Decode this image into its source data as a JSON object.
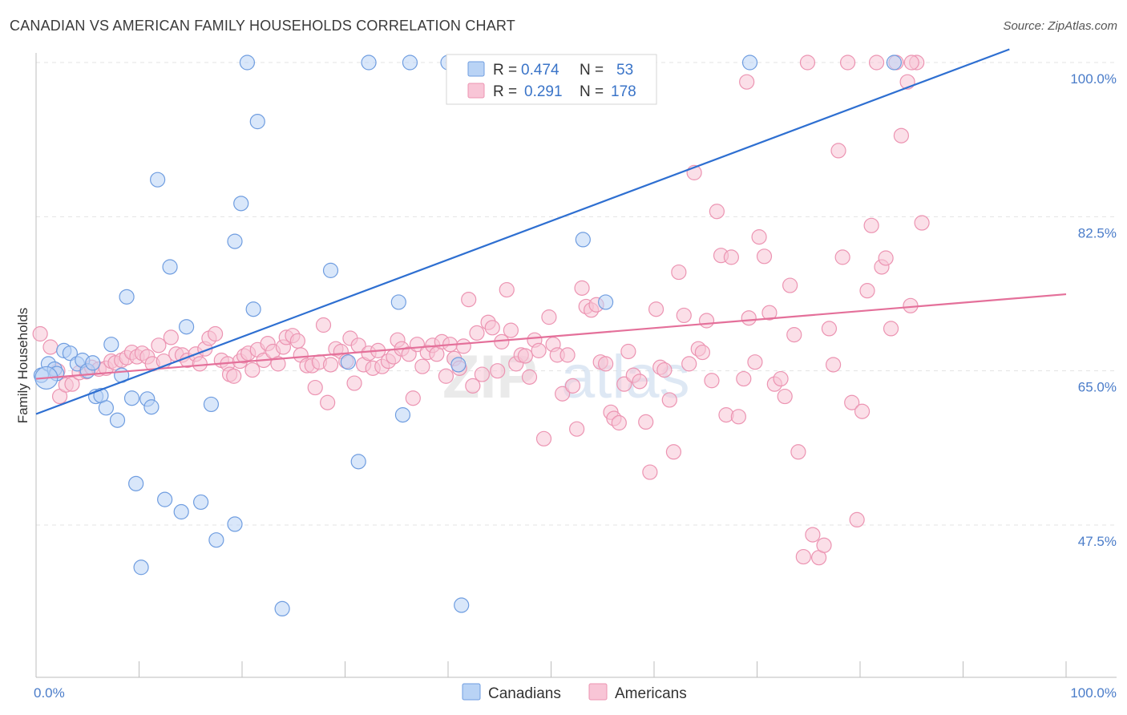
{
  "header": {
    "title": "CANADIAN VS AMERICAN FAMILY HOUSEHOLDS CORRELATION CHART",
    "source": "Source: ZipAtlas.com"
  },
  "watermark": {
    "zip": "ZIP",
    "atlas": "atlas"
  },
  "legend": {
    "rows": [
      {
        "r_label": "R =",
        "r_value": "0.474",
        "n_label": "N =",
        "n_value": "53"
      },
      {
        "r_label": "R =",
        "r_value": "0.291",
        "n_label": "N =",
        "n_value": "178"
      }
    ]
  },
  "bottom_legend": [
    "Canadians",
    "Americans"
  ],
  "colors": {
    "canadians_fill": "#b9d3f5",
    "canadians_stroke": "#6f9de0",
    "canadians_line": "#2e6fd1",
    "americans_fill": "#f8c5d6",
    "americans_stroke": "#ec94b2",
    "americans_line": "#e4709a",
    "grid": "#e3e3e3",
    "axis": "#bdbdbd",
    "tick_text": "#4a7cc9"
  },
  "chart_data": {
    "type": "scatter",
    "title": "CANADIAN VS AMERICAN FAMILY HOUSEHOLDS CORRELATION CHART",
    "xlabel": "",
    "ylabel": "Family Households",
    "x_tick_labels": [
      "0.0%",
      "100.0%"
    ],
    "y_tick_labels": [
      "100.0%",
      "82.5%",
      "65.0%",
      "47.5%"
    ],
    "y_ticks": [
      100,
      82.5,
      65,
      47.5
    ],
    "xlim": [
      0,
      100
    ],
    "ylim": [
      33.5,
      101.5
    ],
    "grid": true,
    "legend_position": "top-center",
    "series": [
      {
        "name": "Canadians",
        "r": 0.474,
        "n": 53,
        "trend": [
          [
            0,
            60.1
          ],
          [
            94.5,
            101.5
          ]
        ],
        "points": [
          [
            0.5,
            64.5
          ],
          [
            1.2,
            65.8
          ],
          [
            1.8,
            65.2
          ],
          [
            2.0,
            64.7
          ],
          [
            2.7,
            67.3
          ],
          [
            3.3,
            67.0
          ],
          [
            4.0,
            65.8
          ],
          [
            4.5,
            66.2
          ],
          [
            5.0,
            65.0
          ],
          [
            5.5,
            65.9
          ],
          [
            5.8,
            62.1
          ],
          [
            6.3,
            62.2
          ],
          [
            6.8,
            60.8
          ],
          [
            7.3,
            68.0
          ],
          [
            7.9,
            59.4
          ],
          [
            8.3,
            64.5
          ],
          [
            8.8,
            73.4
          ],
          [
            9.3,
            61.9
          ],
          [
            9.7,
            52.2
          ],
          [
            10.2,
            42.7
          ],
          [
            10.8,
            61.8
          ],
          [
            11.2,
            60.9
          ],
          [
            11.8,
            86.7
          ],
          [
            12.5,
            50.4
          ],
          [
            13.0,
            76.8
          ],
          [
            14.1,
            49.0
          ],
          [
            14.6,
            70.0
          ],
          [
            16.0,
            50.1
          ],
          [
            17.0,
            61.2
          ],
          [
            17.5,
            45.8
          ],
          [
            19.3,
            79.7
          ],
          [
            19.3,
            47.6
          ],
          [
            19.9,
            84.0
          ],
          [
            20.5,
            100.0
          ],
          [
            21.1,
            72.0
          ],
          [
            21.5,
            93.3
          ],
          [
            23.9,
            38.0
          ],
          [
            28.6,
            76.4
          ],
          [
            30.3,
            66.0
          ],
          [
            31.3,
            54.7
          ],
          [
            32.3,
            100.0
          ],
          [
            35.2,
            72.8
          ],
          [
            35.6,
            60.0
          ],
          [
            36.3,
            100.0
          ],
          [
            40.0,
            100.0
          ],
          [
            41.0,
            65.7
          ],
          [
            41.3,
            38.4
          ],
          [
            53.1,
            79.9
          ],
          [
            55.3,
            72.8
          ],
          [
            58.0,
            100.0
          ],
          [
            69.3,
            100.0
          ],
          [
            83.3,
            100.0
          ],
          [
            1.0,
            64.2
          ]
        ]
      },
      {
        "name": "Americans",
        "r": 0.291,
        "n": 178,
        "trend": [
          [
            0,
            64.1
          ],
          [
            100,
            73.7
          ]
        ],
        "points": [
          [
            0.4,
            69.2
          ],
          [
            1.4,
            67.7
          ],
          [
            2.1,
            65.0
          ],
          [
            2.3,
            62.1
          ],
          [
            2.9,
            63.4
          ],
          [
            3.5,
            63.5
          ],
          [
            4.2,
            64.8
          ],
          [
            4.9,
            64.9
          ],
          [
            5.4,
            65.4
          ],
          [
            6.1,
            65.2
          ],
          [
            6.8,
            65.3
          ],
          [
            7.3,
            66.1
          ],
          [
            7.7,
            65.9
          ],
          [
            8.3,
            66.2
          ],
          [
            8.8,
            66.5
          ],
          [
            9.3,
            67.1
          ],
          [
            9.8,
            66.6
          ],
          [
            10.3,
            67.0
          ],
          [
            10.8,
            66.6
          ],
          [
            11.3,
            65.8
          ],
          [
            11.9,
            67.9
          ],
          [
            12.4,
            66.1
          ],
          [
            13.1,
            68.8
          ],
          [
            13.6,
            66.9
          ],
          [
            14.2,
            66.8
          ],
          [
            14.7,
            66.2
          ],
          [
            15.5,
            66.9
          ],
          [
            15.9,
            65.8
          ],
          [
            16.4,
            67.5
          ],
          [
            16.8,
            68.7
          ],
          [
            17.4,
            69.2
          ],
          [
            18.0,
            66.2
          ],
          [
            18.6,
            65.8
          ],
          [
            18.8,
            64.6
          ],
          [
            19.2,
            64.4
          ],
          [
            19.8,
            66.1
          ],
          [
            20.2,
            66.7
          ],
          [
            20.6,
            67.0
          ],
          [
            21.0,
            65.1
          ],
          [
            21.5,
            67.4
          ],
          [
            22.1,
            66.2
          ],
          [
            22.5,
            68.1
          ],
          [
            23.0,
            67.2
          ],
          [
            23.5,
            65.8
          ],
          [
            24.0,
            67.7
          ],
          [
            24.3,
            68.8
          ],
          [
            24.9,
            69.0
          ],
          [
            25.4,
            68.4
          ],
          [
            25.7,
            66.8
          ],
          [
            26.3,
            65.6
          ],
          [
            26.8,
            65.6
          ],
          [
            27.1,
            63.1
          ],
          [
            27.5,
            66.0
          ],
          [
            27.9,
            70.2
          ],
          [
            28.3,
            61.4
          ],
          [
            28.6,
            65.7
          ],
          [
            29.1,
            67.5
          ],
          [
            29.6,
            67.2
          ],
          [
            30.1,
            66.1
          ],
          [
            30.5,
            68.7
          ],
          [
            30.9,
            63.6
          ],
          [
            31.3,
            67.9
          ],
          [
            31.8,
            65.7
          ],
          [
            32.3,
            67.0
          ],
          [
            32.7,
            65.3
          ],
          [
            33.2,
            67.3
          ],
          [
            33.6,
            65.5
          ],
          [
            34.2,
            66.1
          ],
          [
            34.7,
            66.6
          ],
          [
            35.1,
            68.5
          ],
          [
            35.5,
            67.5
          ],
          [
            36.2,
            66.9
          ],
          [
            36.6,
            61.9
          ],
          [
            37.0,
            68.0
          ],
          [
            37.5,
            65.5
          ],
          [
            38.0,
            67.1
          ],
          [
            38.5,
            67.9
          ],
          [
            38.9,
            66.9
          ],
          [
            39.4,
            68.3
          ],
          [
            39.8,
            64.4
          ],
          [
            40.2,
            68.0
          ],
          [
            40.6,
            66.4
          ],
          [
            41.1,
            65.3
          ],
          [
            41.5,
            67.8
          ],
          [
            42.0,
            73.1
          ],
          [
            42.4,
            63.3
          ],
          [
            42.8,
            69.3
          ],
          [
            43.3,
            64.6
          ],
          [
            43.9,
            70.5
          ],
          [
            44.3,
            69.9
          ],
          [
            44.8,
            65.0
          ],
          [
            45.2,
            68.3
          ],
          [
            45.7,
            74.2
          ],
          [
            46.1,
            69.6
          ],
          [
            46.6,
            65.8
          ],
          [
            47.1,
            66.8
          ],
          [
            47.5,
            66.7
          ],
          [
            47.9,
            64.3
          ],
          [
            48.4,
            68.5
          ],
          [
            48.8,
            67.3
          ],
          [
            49.3,
            57.3
          ],
          [
            49.8,
            71.1
          ],
          [
            50.2,
            68.0
          ],
          [
            50.6,
            66.8
          ],
          [
            51.1,
            62.4
          ],
          [
            51.6,
            66.8
          ],
          [
            52.1,
            63.3
          ],
          [
            52.5,
            58.4
          ],
          [
            53.0,
            74.4
          ],
          [
            53.4,
            72.3
          ],
          [
            53.9,
            71.9
          ],
          [
            54.4,
            72.5
          ],
          [
            54.8,
            66.0
          ],
          [
            55.3,
            65.8
          ],
          [
            55.8,
            60.3
          ],
          [
            56.1,
            59.6
          ],
          [
            56.6,
            59.1
          ],
          [
            57.1,
            63.5
          ],
          [
            57.5,
            67.2
          ],
          [
            58.0,
            64.5
          ],
          [
            58.6,
            63.8
          ],
          [
            59.2,
            59.2
          ],
          [
            59.6,
            53.5
          ],
          [
            60.2,
            72.0
          ],
          [
            60.6,
            65.4
          ],
          [
            61.0,
            65.1
          ],
          [
            61.5,
            61.7
          ],
          [
            61.9,
            55.8
          ],
          [
            62.4,
            76.2
          ],
          [
            62.9,
            71.3
          ],
          [
            63.4,
            65.8
          ],
          [
            63.9,
            87.5
          ],
          [
            64.3,
            67.5
          ],
          [
            64.7,
            67.1
          ],
          [
            65.1,
            70.7
          ],
          [
            65.6,
            63.9
          ],
          [
            66.1,
            83.1
          ],
          [
            66.5,
            78.1
          ],
          [
            67.0,
            60.0
          ],
          [
            67.5,
            77.9
          ],
          [
            68.2,
            59.8
          ],
          [
            68.7,
            64.1
          ],
          [
            69.2,
            71.0
          ],
          [
            69.8,
            66.0
          ],
          [
            70.2,
            80.2
          ],
          [
            70.7,
            78.0
          ],
          [
            71.2,
            71.6
          ],
          [
            71.7,
            63.5
          ],
          [
            72.3,
            64.1
          ],
          [
            72.7,
            62.1
          ],
          [
            73.2,
            74.7
          ],
          [
            73.6,
            69.1
          ],
          [
            74.0,
            55.8
          ],
          [
            74.5,
            43.9
          ],
          [
            74.9,
            100.0
          ],
          [
            75.4,
            46.4
          ],
          [
            76.0,
            43.8
          ],
          [
            76.5,
            45.2
          ],
          [
            77.0,
            69.8
          ],
          [
            77.4,
            65.7
          ],
          [
            77.9,
            90.0
          ],
          [
            78.3,
            77.9
          ],
          [
            78.8,
            100.0
          ],
          [
            79.2,
            61.4
          ],
          [
            79.7,
            48.1
          ],
          [
            80.2,
            60.4
          ],
          [
            80.7,
            74.1
          ],
          [
            81.1,
            81.5
          ],
          [
            81.6,
            100.0
          ],
          [
            82.1,
            76.8
          ],
          [
            82.5,
            77.8
          ],
          [
            83.0,
            69.8
          ],
          [
            83.5,
            100.0
          ],
          [
            84.0,
            91.7
          ],
          [
            84.6,
            97.8
          ],
          [
            84.9,
            72.4
          ],
          [
            85.5,
            100.0
          ],
          [
            86.0,
            81.8
          ],
          [
            69.0,
            97.8
          ],
          [
            85.0,
            100.0
          ]
        ]
      }
    ]
  }
}
